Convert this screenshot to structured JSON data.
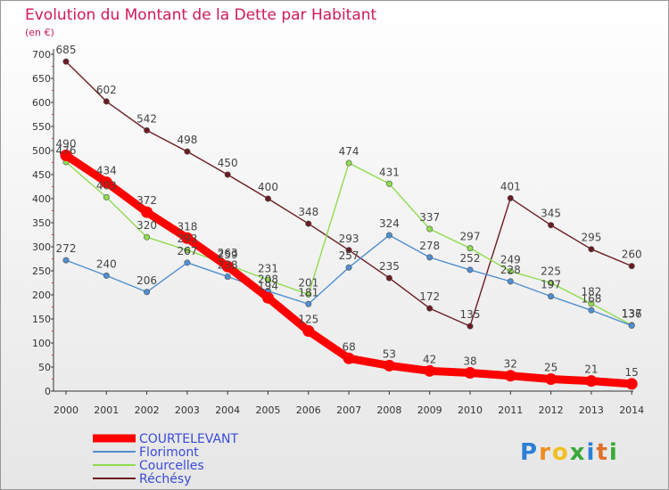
{
  "chart_data": {
    "type": "line",
    "title": "Evolution du Montant de la Dette par Habitant",
    "subtitle": "(en €)",
    "xlabel": "",
    "ylabel": "",
    "x": [
      "2000",
      "2001",
      "2002",
      "2003",
      "2004",
      "2005",
      "2006",
      "2007",
      "2008",
      "2009",
      "2010",
      "2011",
      "2012",
      "2013",
      "2014"
    ],
    "ylim": [
      0,
      700
    ],
    "yticks": [
      0,
      50,
      100,
      150,
      200,
      250,
      300,
      350,
      400,
      450,
      500,
      550,
      600,
      650,
      700
    ],
    "grid": false,
    "legend_position": "bottom-left",
    "series": [
      {
        "name": "COURTELEVANT",
        "color": "#ff0000",
        "values": [
          490,
          434,
          372,
          318,
          259,
          194,
          125,
          68,
          53,
          42,
          38,
          32,
          25,
          21,
          15
        ]
      },
      {
        "name": "Florimont",
        "color": "#4f8fd1",
        "values": [
          272,
          240,
          206,
          267,
          238,
          208,
          181,
          257,
          324,
          278,
          252,
          228,
          197,
          168,
          136
        ]
      },
      {
        "name": "Courcelles",
        "color": "#8fdc50",
        "values": [
          476,
          403,
          320,
          293,
          263,
          231,
          201,
          474,
          431,
          337,
          297,
          249,
          225,
          182,
          137
        ]
      },
      {
        "name": "Réchésy",
        "color": "#6b1c22",
        "values": [
          685,
          602,
          542,
          498,
          450,
          400,
          348,
          293,
          235,
          172,
          135,
          401,
          345,
          295,
          260
        ]
      }
    ]
  },
  "colors": {
    "title": "#d1185a",
    "legend_text": "#3a4bd8",
    "axis": "#333333",
    "background": "#ffffff",
    "plot_gradient_top": "#ffffff",
    "plot_gradient_bottom": "#e6e6e6"
  },
  "logo": {
    "text": "Proxiti"
  }
}
